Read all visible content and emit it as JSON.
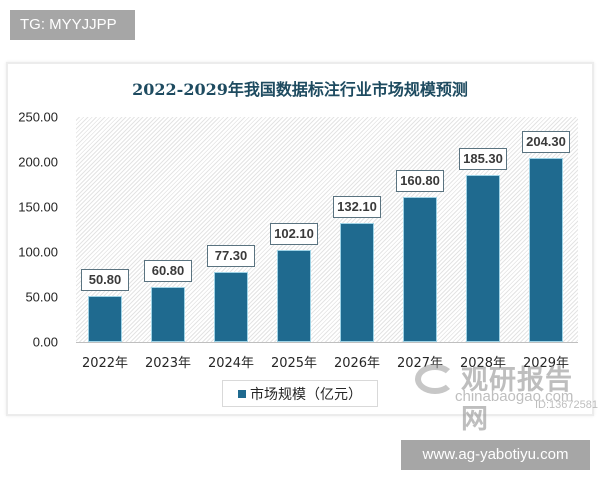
{
  "overlays": {
    "top_tag": "TG: MYYJJPP",
    "bottom_tag": "www.ag-yabotiyu.com"
  },
  "watermark": {
    "brand": "观研报告网",
    "url": "chinabaogao.com",
    "id": "ID:13672581"
  },
  "colors": {
    "bar": "#1f6a8f",
    "bar_border": "#9fd3e6",
    "title": "#1e4b60"
  },
  "chart_data": {
    "type": "bar",
    "title": "2022-2029年我国数据标注行业市场规模预测",
    "xlabel": "",
    "ylabel": "",
    "categories": [
      "2022年",
      "2023年",
      "2024年",
      "2025年",
      "2026年",
      "2027年",
      "2028年",
      "2029年"
    ],
    "series": [
      {
        "name": "市场规模（亿元）",
        "values": [
          50.8,
          60.8,
          77.3,
          102.1,
          132.1,
          160.8,
          185.3,
          204.3
        ],
        "labels": [
          "50.80",
          "60.80",
          "77.30",
          "102.10",
          "132.10",
          "160.80",
          "185.30",
          "204.30"
        ]
      }
    ],
    "ylim": [
      0,
      250
    ],
    "yticks": [
      "0.00",
      "50.00",
      "100.00",
      "150.00",
      "200.00",
      "250.00"
    ],
    "grid": false,
    "legend_position": "bottom"
  }
}
